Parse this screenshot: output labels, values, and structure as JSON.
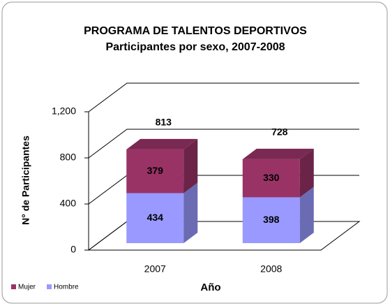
{
  "chart_data": {
    "type": "bar3d-stacked",
    "title": "PROGRAMA DE TALENTOS DEPORTIVOS",
    "subtitle": "Participantes por sexo, 2007-2008",
    "y_label": "N° de Participantes",
    "x_label": "Año",
    "categories": [
      "2007",
      "2008"
    ],
    "series": [
      {
        "name": "Mujer",
        "color": "#993366",
        "values": [
          379,
          330
        ]
      },
      {
        "name": "Hombre",
        "color": "#9999ff",
        "values": [
          434,
          398
        ]
      }
    ],
    "totals": [
      813,
      728
    ],
    "ylim": [
      0,
      1200
    ],
    "yticks": [
      0,
      400,
      800,
      {
        "value": 1200,
        "label": "1,200"
      }
    ],
    "grid": true,
    "legend": "bottom-left"
  }
}
